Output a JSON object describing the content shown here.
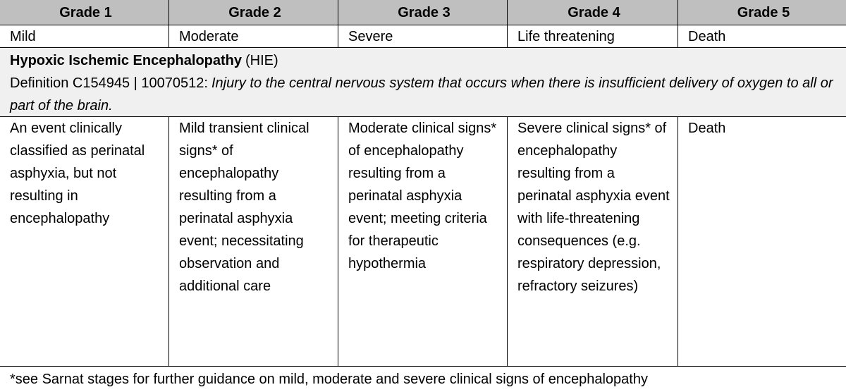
{
  "table": {
    "header": [
      "Grade 1",
      "Grade 2",
      "Grade 3",
      "Grade 4",
      "Grade 5"
    ],
    "severity": [
      "Mild",
      "Moderate",
      "Severe",
      "Life threatening",
      "Death"
    ],
    "term": {
      "name": "Hypoxic Ischemic Encephalopathy",
      "abbreviation": "(HIE)",
      "definition_label": "Definition C154945 | 10070512:",
      "definition": "Injury to the central nervous system that occurs when there is insufficient delivery of oxygen to all or part of the brain."
    },
    "descriptions": [
      "An event clinically classified as perinatal asphyxia, but not resulting in encephalopathy",
      "Mild transient clinical signs* of encephalopathy resulting from a perinatal asphyxia event; necessitating observation and additional care",
      "Moderate clinical signs* of encephalopathy resulting from a perinatal asphyxia event; meeting criteria for therapeutic hypothermia",
      "Severe clinical signs* of encephalopathy resulting from a perinatal asphyxia event with life-threatening consequences (e.g. respiratory depression, refractory seizures)",
      "Death"
    ],
    "footnote": "*see Sarnat stages for further guidance on mild, moderate and severe clinical signs of encephalopathy"
  }
}
